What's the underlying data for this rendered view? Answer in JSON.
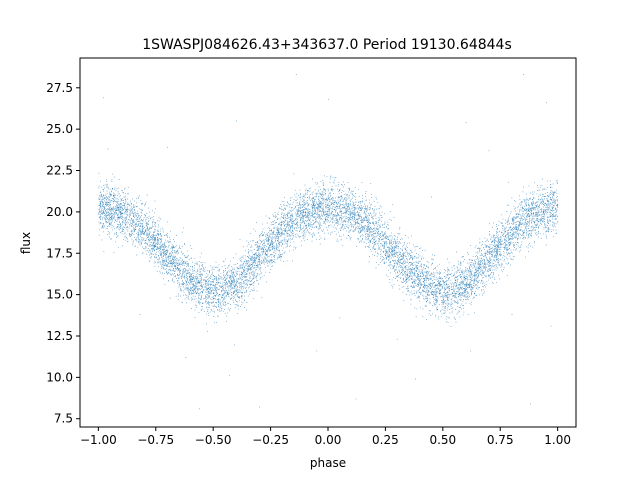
{
  "chart_data": {
    "type": "scatter",
    "title": "1SWASPJ084626.43+343637.0 Period 19130.64844s",
    "xlabel": "phase",
    "ylabel": "flux",
    "xlim": [
      -1.08,
      1.08
    ],
    "ylim": [
      7.0,
      29.3
    ],
    "grid": false,
    "x_ticks": [
      -1.0,
      -0.75,
      -0.5,
      -0.25,
      0.0,
      0.25,
      0.5,
      0.75,
      1.0
    ],
    "x_tick_labels": [
      "−1.00",
      "−0.75",
      "−0.50",
      "−0.25",
      "0.00",
      "0.25",
      "0.50",
      "0.75",
      "1.00"
    ],
    "y_ticks": [
      7.5,
      10.0,
      12.5,
      15.0,
      17.5,
      20.0,
      22.5,
      25.0,
      27.5
    ],
    "y_tick_labels": [
      "7.5",
      "10.0",
      "12.5",
      "15.0",
      "17.5",
      "20.0",
      "22.5",
      "25.0",
      "27.5"
    ],
    "series": [
      {
        "color": "#1f77b4",
        "curve": {
          "x": [
            -1.0,
            -0.9,
            -0.8,
            -0.7,
            -0.6,
            -0.5,
            -0.4,
            -0.3,
            -0.2,
            -0.1,
            0.0,
            0.1,
            0.2,
            0.3,
            0.4,
            0.5,
            0.6,
            0.7,
            0.8,
            0.9,
            1.0
          ],
          "y": [
            20.3,
            19.9,
            18.9,
            17.3,
            15.9,
            15.1,
            15.6,
            17.2,
            18.8,
            19.9,
            20.3,
            19.9,
            18.9,
            17.3,
            15.9,
            15.1,
            15.6,
            17.2,
            18.8,
            19.9,
            20.3
          ]
        },
        "scatter_sd": 0.75,
        "n_points": 9000,
        "outliers": [
          {
            "x": -0.98,
            "y": 26.9
          },
          {
            "x": -0.96,
            "y": 23.8
          },
          {
            "x": -0.82,
            "y": 13.8
          },
          {
            "x": -0.7,
            "y": 23.9
          },
          {
            "x": -0.62,
            "y": 11.2
          },
          {
            "x": -0.56,
            "y": 8.1
          },
          {
            "x": -0.43,
            "y": 10.1
          },
          {
            "x": -0.4,
            "y": 25.5
          },
          {
            "x": -0.3,
            "y": 8.2
          },
          {
            "x": -0.15,
            "y": 22.3
          },
          {
            "x": -0.14,
            "y": 28.3
          },
          {
            "x": -0.05,
            "y": 11.6
          },
          {
            "x": 0.0,
            "y": 26.8
          },
          {
            "x": 0.05,
            "y": 13.6
          },
          {
            "x": 0.12,
            "y": 8.7
          },
          {
            "x": 0.3,
            "y": 12.3
          },
          {
            "x": 0.38,
            "y": 9.9
          },
          {
            "x": 0.45,
            "y": 20.9
          },
          {
            "x": 0.6,
            "y": 25.4
          },
          {
            "x": 0.62,
            "y": 11.6
          },
          {
            "x": 0.7,
            "y": 23.7
          },
          {
            "x": 0.8,
            "y": 13.8
          },
          {
            "x": 0.85,
            "y": 28.3
          },
          {
            "x": 0.88,
            "y": 8.4
          },
          {
            "x": 0.95,
            "y": 26.6
          },
          {
            "x": 0.97,
            "y": 13.1
          }
        ]
      }
    ]
  }
}
